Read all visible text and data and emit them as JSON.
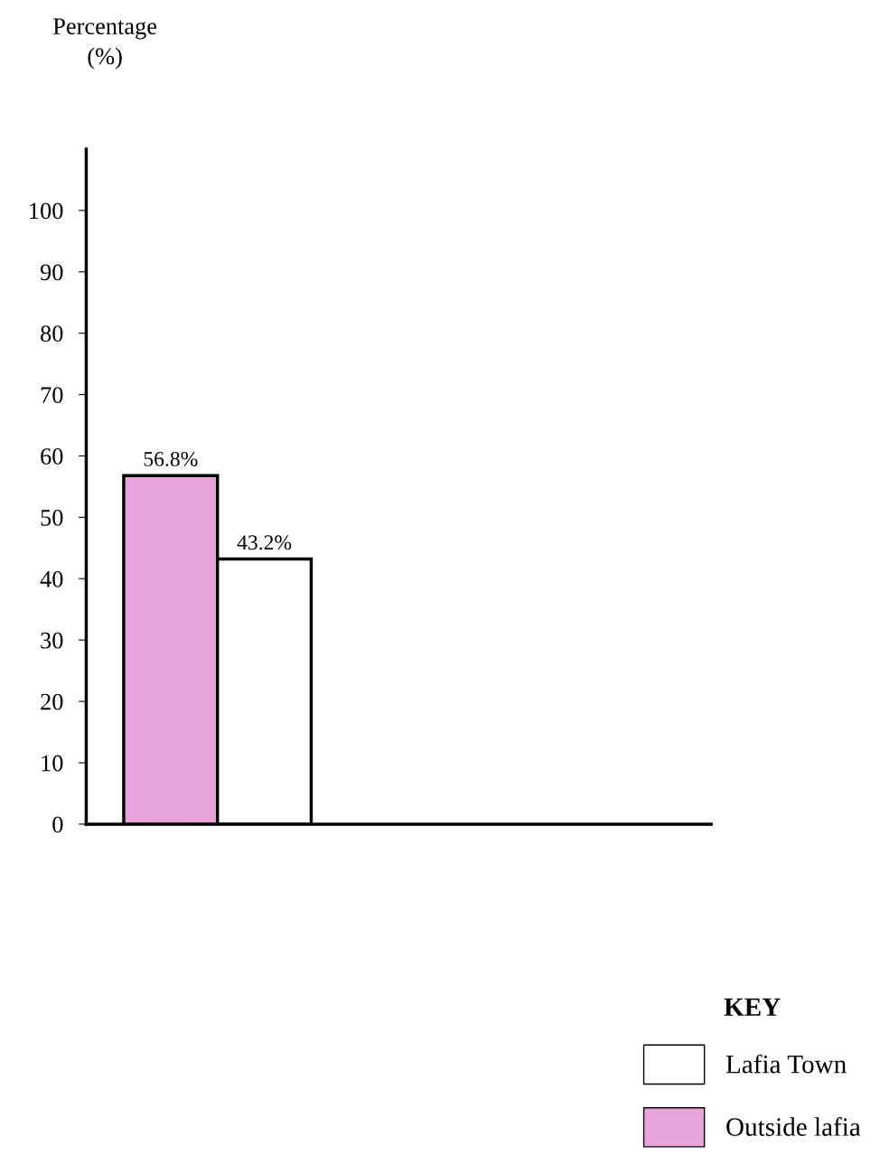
{
  "chart_data": {
    "type": "bar",
    "ylabel": "Percentage\n(%)",
    "legend_title": "KEY",
    "categories": [
      null
    ],
    "series": [
      {
        "name": "Outside lafia",
        "color": "#e8a3d8",
        "values": [
          56.8
        ],
        "value_labels": [
          "56.8%"
        ]
      },
      {
        "name": "Lafia Town",
        "color": "#ffffff",
        "values": [
          43.2
        ],
        "value_labels": [
          "43.2%"
        ]
      }
    ],
    "ylim": [
      0,
      110
    ],
    "yticks": [
      0,
      10,
      20,
      30,
      40,
      50,
      60,
      70,
      80,
      90,
      100
    ],
    "grid": false,
    "legend": "bottom right"
  }
}
